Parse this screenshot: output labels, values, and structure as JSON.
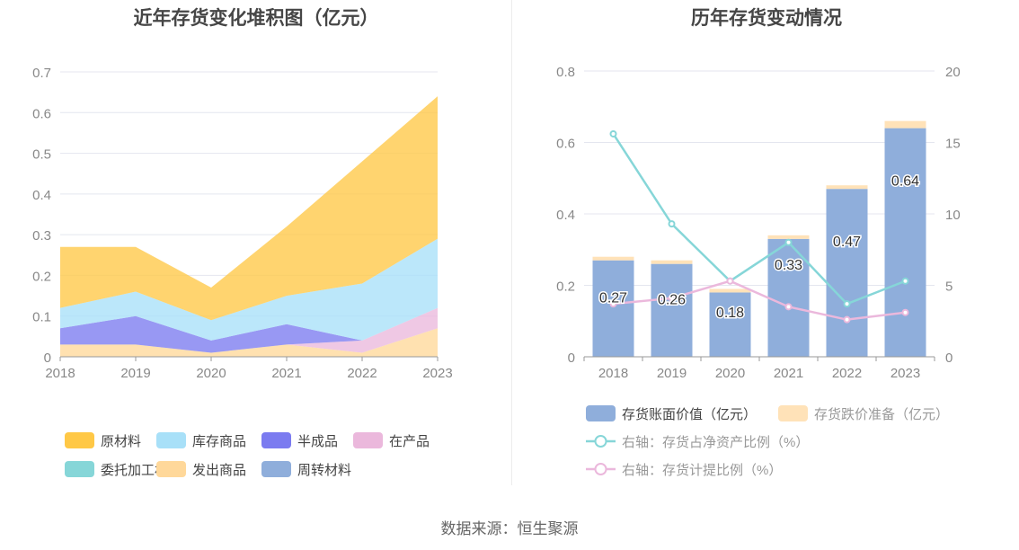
{
  "left_chart": {
    "title": "近年存货变化堆积图（亿元）"
  },
  "right_chart": {
    "title": "历年存货变动情况"
  },
  "source": "数据来源：恒生聚源",
  "colors": {
    "raw_materials": "#FFC846",
    "stock_goods": "#A8E0F8",
    "semi_finished": "#7B7BF0",
    "wip": "#EBB8DC",
    "consigned": "#86D6D8",
    "shipped": "#FFD89A",
    "revolving": "#8FAEDB",
    "book_value": "#8FAEDB",
    "impairment": "#FFE2B8",
    "net_asset_ratio": "#86D6D8",
    "provision_ratio": "#EBB8DC"
  },
  "chart_data": [
    {
      "type": "area",
      "stacked": true,
      "title": "近年存货变化堆积图（亿元）",
      "categories": [
        "2018",
        "2019",
        "2020",
        "2021",
        "2022",
        "2023"
      ],
      "ylim": [
        0,
        0.7
      ],
      "yticks": [
        "0",
        "0.1",
        "0.2",
        "0.3",
        "0.4",
        "0.5",
        "0.6",
        "0.7"
      ],
      "series": [
        {
          "name": "发出商品",
          "color_key": "shipped",
          "values": [
            0.03,
            0.03,
            0.01,
            0.03,
            0.01,
            0.07
          ]
        },
        {
          "name": "在产品",
          "color_key": "wip",
          "values": [
            0,
            0,
            0,
            0,
            0.03,
            0.05
          ]
        },
        {
          "name": "半成品",
          "color_key": "semi_finished",
          "values": [
            0.04,
            0.07,
            0.03,
            0.05,
            0,
            0
          ]
        },
        {
          "name": "库存商品",
          "color_key": "stock_goods",
          "values": [
            0.05,
            0.06,
            0.05,
            0.07,
            0.14,
            0.17
          ]
        },
        {
          "name": "原材料",
          "color_key": "raw_materials",
          "values": [
            0.15,
            0.11,
            0.08,
            0.17,
            0.3,
            0.35
          ]
        },
        {
          "name": "委托加工材料",
          "color_key": "consigned",
          "values": [
            0,
            0,
            0,
            0,
            0,
            0
          ]
        },
        {
          "name": "周转材料",
          "color_key": "revolving",
          "values": [
            0,
            0,
            0,
            0,
            0,
            0
          ]
        }
      ],
      "legend": [
        {
          "name": "原材料",
          "color_key": "raw_materials"
        },
        {
          "name": "库存商品",
          "color_key": "stock_goods"
        },
        {
          "name": "半成品",
          "color_key": "semi_finished"
        },
        {
          "name": "在产品",
          "color_key": "wip"
        },
        {
          "name": "委托加工材料",
          "color_key": "consigned"
        },
        {
          "name": "发出商品",
          "color_key": "shipped"
        },
        {
          "name": "周转材料",
          "color_key": "revolving"
        }
      ]
    },
    {
      "type": "bar",
      "stacked": true,
      "title": "历年存货变动情况",
      "categories": [
        "2018",
        "2019",
        "2020",
        "2021",
        "2022",
        "2023"
      ],
      "ylim": [
        0,
        0.8
      ],
      "yticks": [
        "0",
        "0.2",
        "0.4",
        "0.6",
        "0.8"
      ],
      "y2lim": [
        0,
        20
      ],
      "y2ticks": [
        "0",
        "5",
        "10",
        "15",
        "20"
      ],
      "series": [
        {
          "name": "存货账面价值（亿元）",
          "color_key": "book_value",
          "values": [
            0.27,
            0.26,
            0.18,
            0.33,
            0.47,
            0.64
          ],
          "labels": [
            "0.27",
            "0.26",
            "0.18",
            "0.33",
            "0.47",
            "0.64"
          ]
        },
        {
          "name": "存货跌价准备（亿元）",
          "color_key": "impairment",
          "values": [
            0.01,
            0.01,
            0.01,
            0.01,
            0.01,
            0.02
          ]
        }
      ],
      "lines": [
        {
          "name": "右轴：存货占净资产比例（%）",
          "color_key": "net_asset_ratio",
          "values": [
            15.6,
            9.3,
            5.3,
            8.0,
            3.7,
            5.3
          ]
        },
        {
          "name": "右轴：存货计提比例（%）",
          "color_key": "provision_ratio",
          "values": [
            3.7,
            4.1,
            5.3,
            3.5,
            2.6,
            3.1
          ]
        }
      ]
    }
  ]
}
